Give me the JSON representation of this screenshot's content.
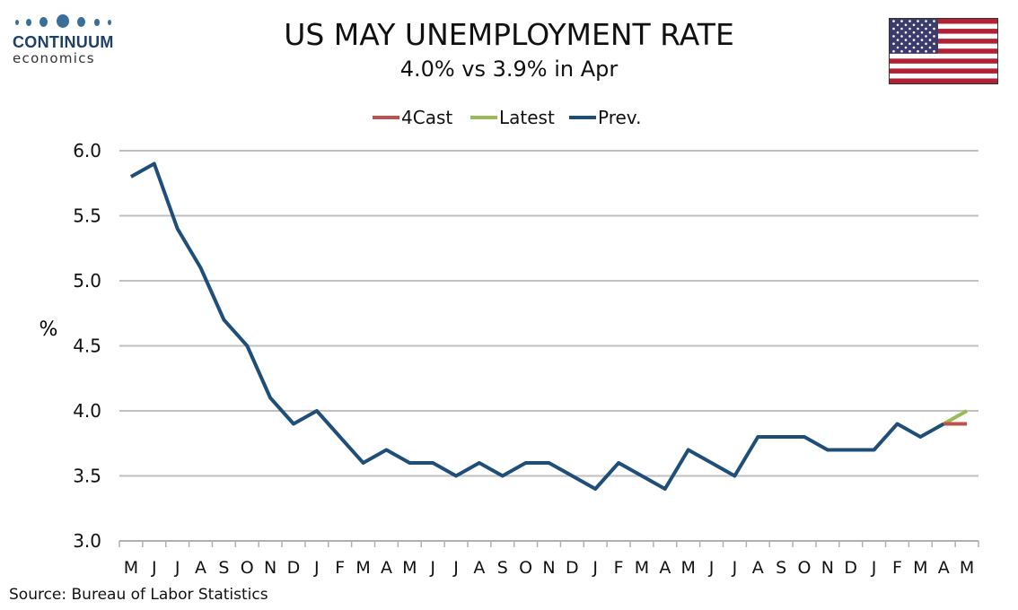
{
  "header": {
    "logo_name": "CONTINUUM",
    "logo_sub": "economics",
    "logo_icon": "dots-logo-icon",
    "flag_icon": "us-flag-icon",
    "title": "US MAY UNEMPLOYMENT RATE",
    "subtitle": "4.0% vs 3.9% in Apr"
  },
  "footer": {
    "source": "Source: Bureau of Labor Statistics"
  },
  "colors": {
    "prev": "#1f4e79",
    "latest": "#9bbb59",
    "forecast": "#c0504d",
    "grid": "#c0c0c0",
    "flag_red": "#b22234",
    "flag_blue": "#3c3b6e"
  },
  "chart_data": {
    "type": "line",
    "categories": [
      "M",
      "J",
      "J",
      "A",
      "S",
      "O",
      "N",
      "D",
      "J",
      "F",
      "M",
      "A",
      "M",
      "J",
      "J",
      "A",
      "S",
      "O",
      "N",
      "D",
      "J",
      "F",
      "M",
      "A",
      "M",
      "J",
      "J",
      "A",
      "S",
      "O",
      "N",
      "D",
      "J",
      "F",
      "M",
      "A",
      "M"
    ],
    "ylabel": "%",
    "ylim": [
      3.0,
      6.0
    ],
    "yticks": [
      "3.0",
      "3.5",
      "4.0",
      "4.5",
      "5.0",
      "5.5",
      "6.0"
    ],
    "grid": true,
    "legend_position": "top-center",
    "legend": [
      "4Cast",
      "Latest",
      "Prev."
    ],
    "series": [
      {
        "name": "Prev.",
        "values": [
          5.8,
          5.9,
          5.4,
          5.1,
          4.7,
          4.5,
          4.1,
          3.9,
          4.0,
          3.8,
          3.6,
          3.7,
          3.6,
          3.6,
          3.5,
          3.6,
          3.5,
          3.6,
          3.6,
          3.5,
          3.4,
          3.6,
          3.5,
          3.4,
          3.7,
          3.6,
          3.5,
          3.8,
          3.8,
          3.8,
          3.7,
          3.7,
          3.7,
          3.9,
          3.8,
          3.9,
          null
        ]
      },
      {
        "name": "Latest",
        "values": [
          null,
          null,
          null,
          null,
          null,
          null,
          null,
          null,
          null,
          null,
          null,
          null,
          null,
          null,
          null,
          null,
          null,
          null,
          null,
          null,
          null,
          null,
          null,
          null,
          null,
          null,
          null,
          null,
          null,
          null,
          null,
          null,
          null,
          null,
          null,
          3.9,
          4.0
        ]
      },
      {
        "name": "4Cast",
        "values": [
          null,
          null,
          null,
          null,
          null,
          null,
          null,
          null,
          null,
          null,
          null,
          null,
          null,
          null,
          null,
          null,
          null,
          null,
          null,
          null,
          null,
          null,
          null,
          null,
          null,
          null,
          null,
          null,
          null,
          null,
          null,
          null,
          null,
          null,
          null,
          3.9,
          3.9
        ]
      }
    ]
  }
}
